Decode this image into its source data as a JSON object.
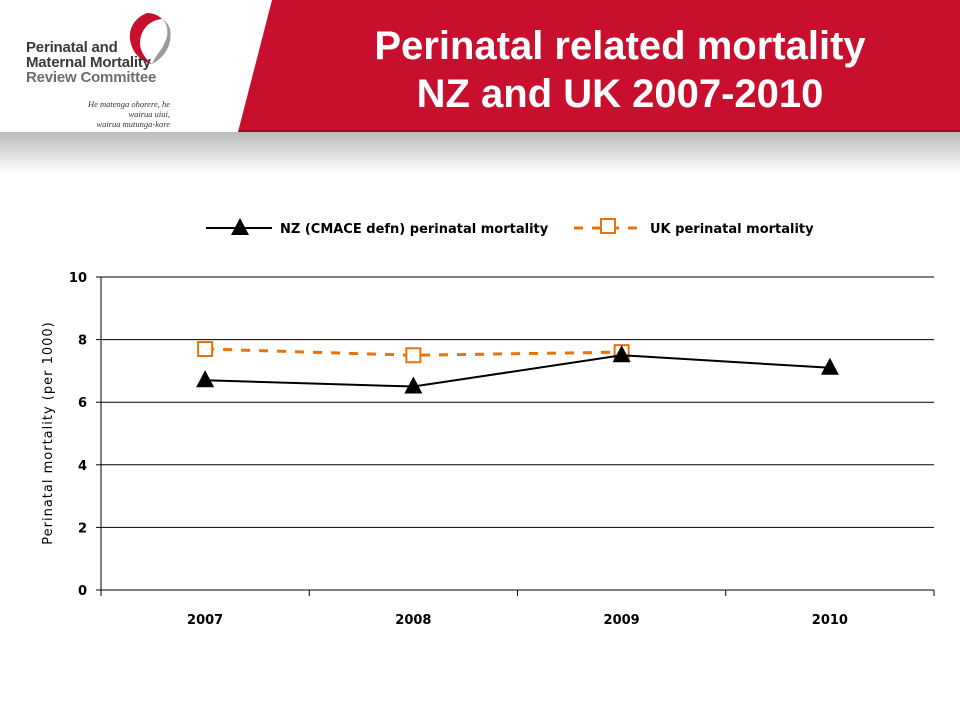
{
  "header": {
    "title_line1": "Perinatal related mortality",
    "title_line2": "NZ and UK 2007-2010",
    "brand_color": "#c8102e"
  },
  "logo": {
    "line1": "Perinatal and",
    "line2": "Maternal Mortality",
    "line3": "Review Committee",
    "tagline1": "He matenga ohorere, he wairua uiui,",
    "tagline2": "wairua mutunga-kore",
    "icon": "logo-emblem-icon"
  },
  "chart_data": {
    "type": "line",
    "categories": [
      "2007",
      "2008",
      "2009",
      "2010"
    ],
    "series": [
      {
        "name": "NZ (CMACE defn) perinatal mortality",
        "values": [
          6.7,
          6.5,
          7.5,
          7.1
        ],
        "color": "#000000",
        "marker": "triangle",
        "dash": "solid"
      },
      {
        "name": "UK perinatal mortality",
        "values": [
          7.7,
          7.5,
          7.6,
          null
        ],
        "color": "#e8720c",
        "marker": "square-open",
        "dash": "dashed"
      }
    ],
    "ylabel": "Perinatal mortality (per 1000)",
    "ylim": [
      0,
      10
    ],
    "yticks": [
      0,
      2,
      4,
      6,
      8,
      10
    ],
    "grid": true,
    "legend": "top"
  }
}
